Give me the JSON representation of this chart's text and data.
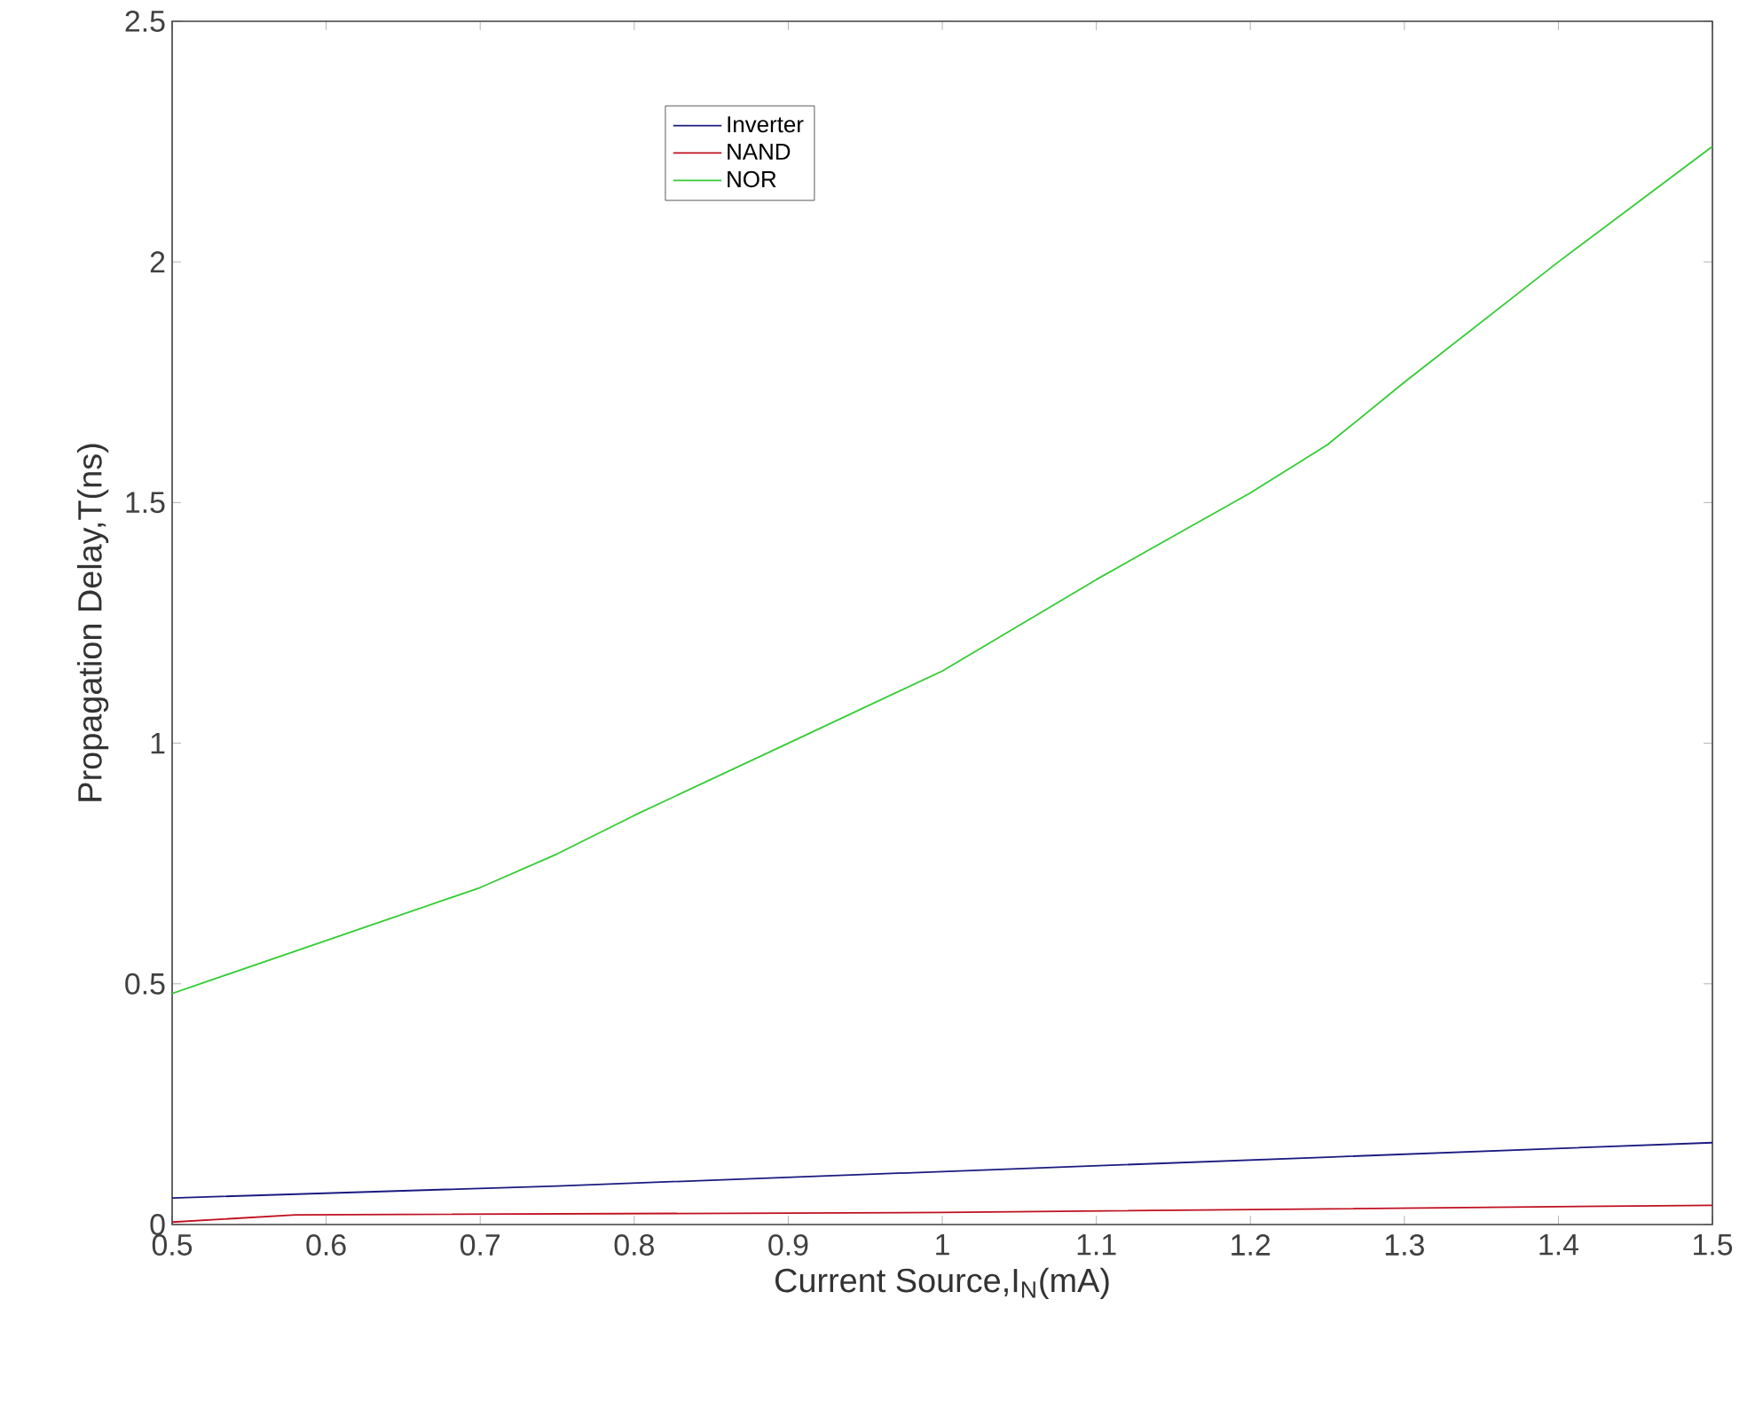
{
  "chart_data": {
    "type": "line",
    "xlabel": "Current Source,I$_{N}$(mA)",
    "ylabel": "Propagation Delay,T(ns)",
    "xlim": [
      0.5,
      1.5
    ],
    "ylim": [
      0,
      2.5
    ],
    "xticks": [
      0.5,
      0.6,
      0.7,
      0.8,
      0.9,
      1,
      1.1,
      1.2,
      1.3,
      1.4,
      1.5
    ],
    "yticks": [
      0,
      0.5,
      1,
      1.5,
      2,
      2.5
    ],
    "legend": "top",
    "grid": false,
    "marker": "none",
    "line_style": "solid",
    "series": [
      {
        "name": "Inverter",
        "color": "#1a1a80",
        "x": [
          0.5,
          0.75,
          1.0,
          1.25,
          1.5
        ],
        "values": [
          0.055,
          0.08,
          0.11,
          0.14,
          0.17
        ]
      },
      {
        "name": "NAND",
        "color": "#c01020",
        "x": [
          0.5,
          0.58,
          1.0,
          1.5
        ],
        "values": [
          0.005,
          0.02,
          0.025,
          0.04
        ]
      },
      {
        "name": "NOR",
        "color": "#33cc33",
        "x": [
          0.5,
          0.6,
          0.7,
          0.75,
          0.8,
          0.9,
          1.0,
          1.1,
          1.2,
          1.25,
          1.3,
          1.4,
          1.5
        ],
        "values": [
          0.48,
          0.59,
          0.7,
          0.77,
          0.85,
          1.0,
          1.15,
          1.34,
          1.52,
          1.62,
          1.75,
          2.0,
          2.24
        ]
      }
    ]
  }
}
